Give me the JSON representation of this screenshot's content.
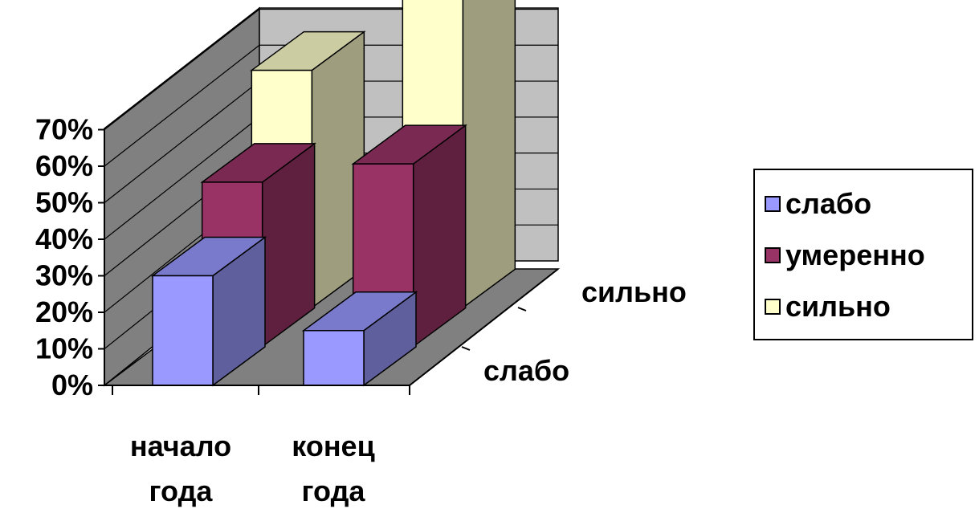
{
  "chart_data": {
    "type": "bar",
    "subtype": "3d-column",
    "categories": [
      "начало года",
      "конец года"
    ],
    "depth_labels": [
      "слабо",
      "сильно"
    ],
    "series": [
      {
        "name": "слабо",
        "values": [
          30,
          15
        ],
        "color": "#9999ff"
      },
      {
        "name": "умеренно",
        "values": [
          45,
          50
        ],
        "color": "#993366"
      },
      {
        "name": "сильно",
        "values": [
          65,
          85
        ],
        "color": "#ffffcc"
      }
    ],
    "y_ticks": [
      "0%",
      "10%",
      "20%",
      "30%",
      "40%",
      "50%",
      "60%",
      "70%"
    ],
    "ylim": [
      0,
      100
    ],
    "grid": true,
    "legend": "right"
  },
  "legend": {
    "items": [
      {
        "label": "слабо",
        "color": "#9999ff"
      },
      {
        "label": "умеренно",
        "color": "#993366"
      },
      {
        "label": "сильно",
        "color": "#ffffcc"
      }
    ]
  },
  "categories_display": [
    [
      "начало",
      "года"
    ],
    [
      "конец",
      "года"
    ]
  ]
}
